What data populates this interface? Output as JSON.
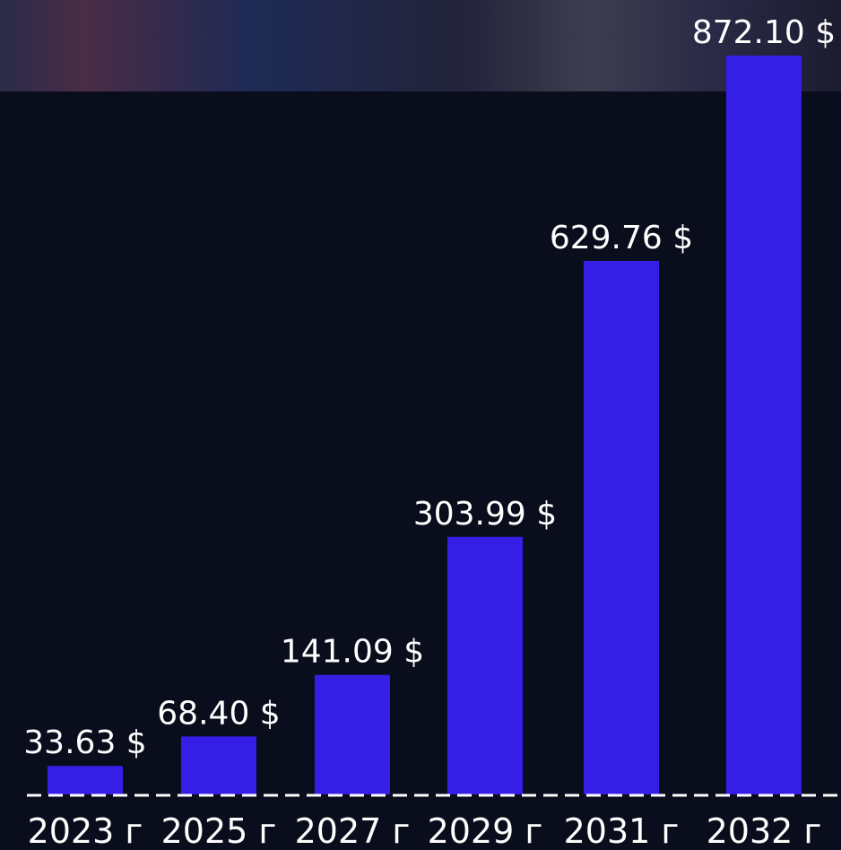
{
  "chart_data": {
    "type": "bar",
    "categories": [
      "2023 г",
      "2025 г",
      "2027 г",
      "2029 г",
      "2031 г",
      "2032 г"
    ],
    "values": [
      33.63,
      68.4,
      141.09,
      303.99,
      629.76,
      872.1
    ],
    "value_labels": [
      "33.63 $",
      "68.40 $",
      "141.09 $",
      "303.99 $",
      "629.76 $",
      "872.10 $"
    ],
    "title": "",
    "xlabel": "",
    "ylabel": "",
    "ylim": [
      0,
      872.1
    ],
    "grid": false,
    "legend": "none",
    "colors": {
      "background": "#0a0d1c",
      "bar": "#351ee6",
      "text": "#ffffff",
      "baseline": "#ffffff",
      "header_strip": "#2a2946"
    }
  }
}
